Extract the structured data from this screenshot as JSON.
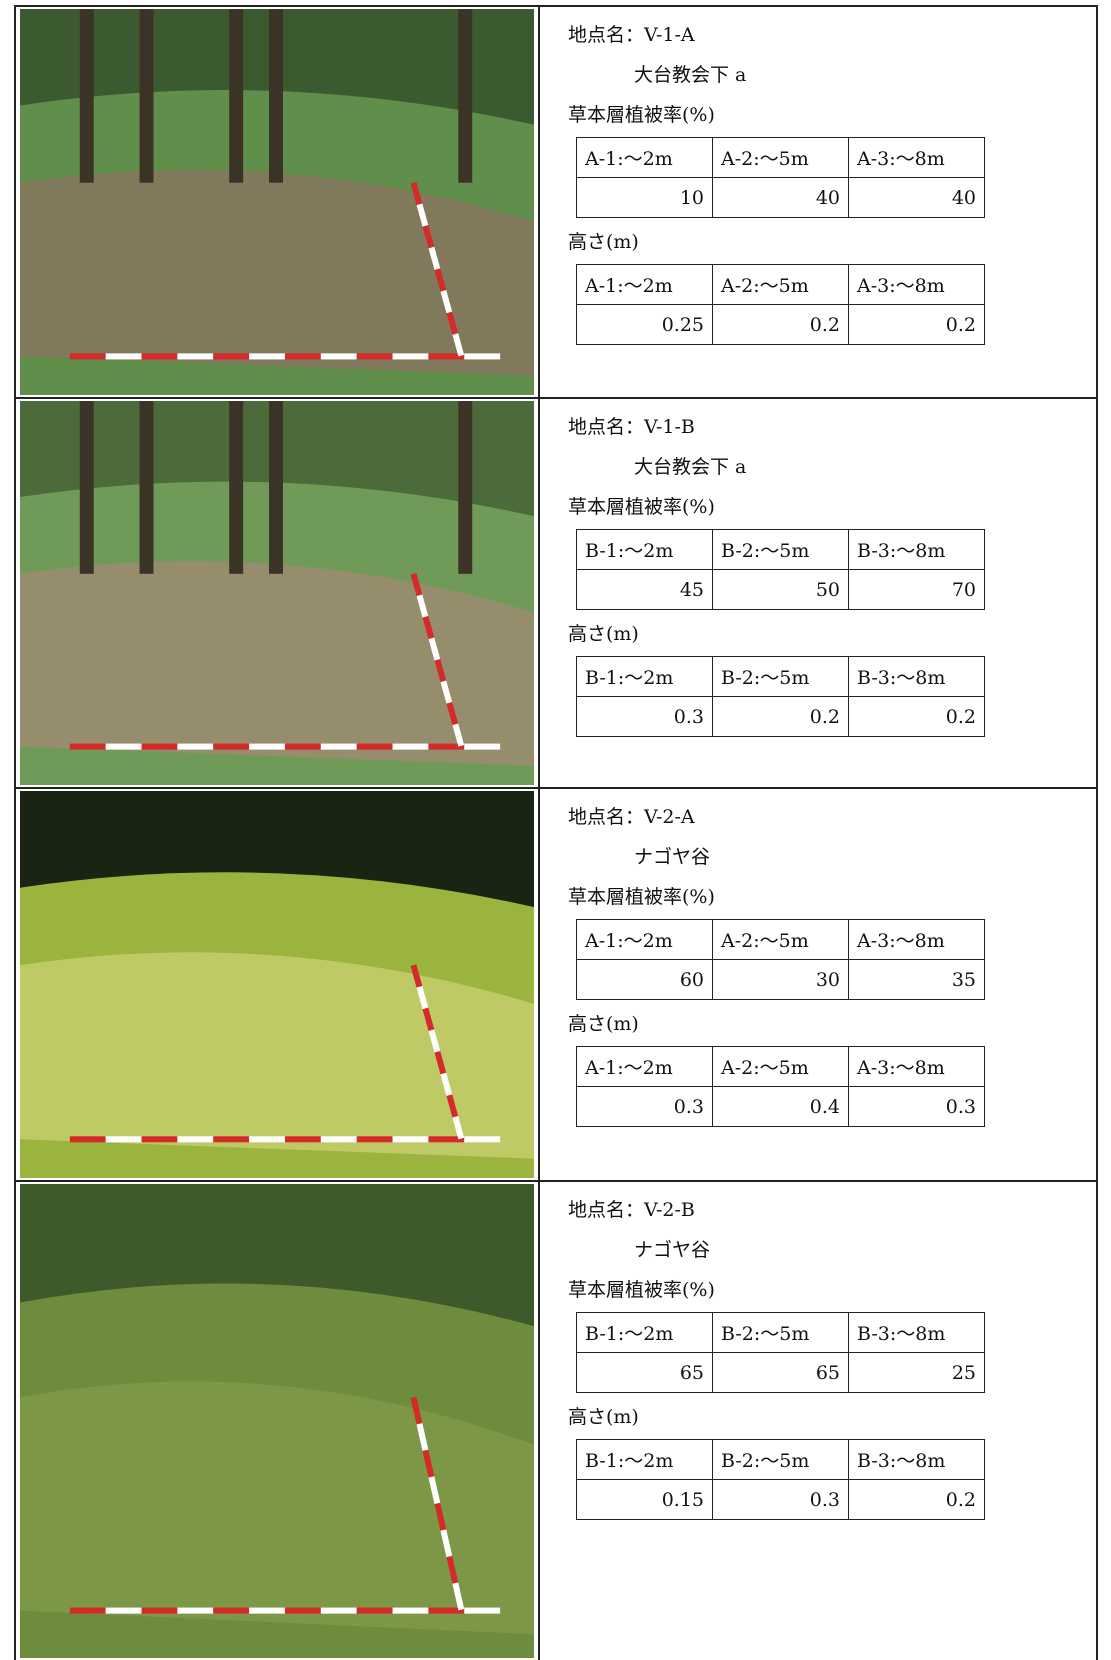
{
  "sites": [
    {
      "name": "地点名：V-1-A",
      "location": "大台教会下 a",
      "cover_heading": "草本層植被率(%)",
      "cover_table": {
        "headers": [
          "A-1:～2m",
          "A-2:～5m",
          "A-3:～8m"
        ],
        "values": [
          10,
          40,
          40
        ]
      },
      "height_heading": "高さ(m)",
      "height_table": {
        "headers": [
          "A-1:～2m",
          "A-2:～5m",
          "A-3:～8m"
        ],
        "values": [
          0.25,
          0.2,
          0.2
        ]
      }
    },
    {
      "name": "地点名：V-1-B",
      "location": "大台教会下 a",
      "cover_heading": "草本層植被率(%)",
      "cover_table": {
        "headers": [
          "B-1:～2m",
          "B-2:～5m",
          "B-3:～8m"
        ],
        "values": [
          45,
          50,
          70
        ]
      },
      "height_heading": "高さ(m)",
      "height_table": {
        "headers": [
          "B-1:～2m",
          "B-2:～5m",
          "B-3:～8m"
        ],
        "values": [
          0.3,
          0.2,
          0.2
        ]
      }
    },
    {
      "name": "地点名：V-2-A",
      "location": "ナゴヤ谷",
      "cover_heading": "草本層植被率(%)",
      "cover_table": {
        "headers": [
          "A-1:～2m",
          "A-2:～5m",
          "A-3:～8m"
        ],
        "values": [
          60,
          30,
          35
        ]
      },
      "height_heading": "高さ(m)",
      "height_table": {
        "headers": [
          "A-1:～2m",
          "A-2:～5m",
          "A-3:～8m"
        ],
        "values": [
          0.3,
          0.4,
          0.3
        ]
      }
    },
    {
      "name": "地点名：V-2-B",
      "location": "ナゴヤ谷",
      "cover_heading": "草本層植被率(%)",
      "cover_table": {
        "headers": [
          "B-1:～2m",
          "B-2:～5m",
          "B-3:～8m"
        ],
        "values": [
          65,
          65,
          25
        ]
      },
      "height_heading": "高さ(m)",
      "height_table": {
        "headers": [
          "B-1:～2m",
          "B-2:～5m",
          "B-3:～8m"
        ],
        "values": [
          0.15,
          0.3,
          0.2
        ]
      }
    }
  ]
}
